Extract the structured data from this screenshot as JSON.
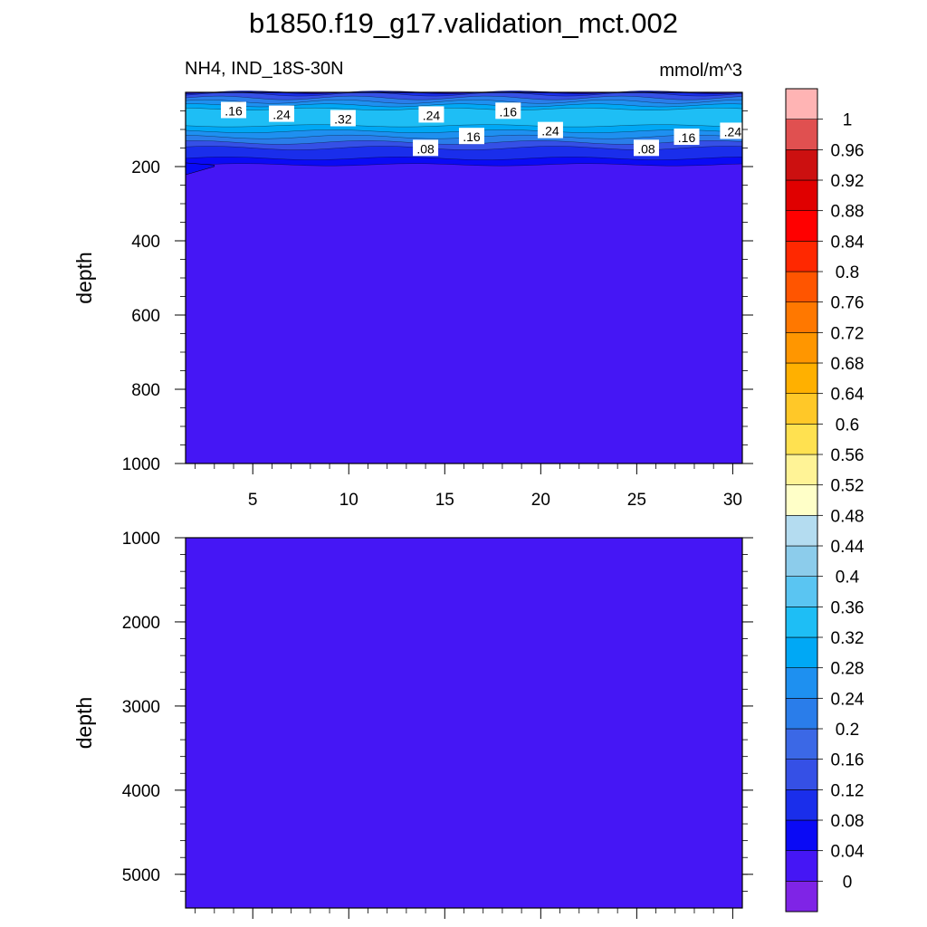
{
  "chart_data": {
    "type": "heatmap",
    "title": "b1850.f19_g17.validation_mct.002",
    "subtitle_left": "NH4, IND_18S-30N",
    "subtitle_right": "mmol/m^3",
    "xlim": [
      1.5,
      30.5
    ],
    "x_ticks": [
      5,
      10,
      15,
      20,
      25,
      30
    ],
    "x_tick_labels": [
      "5",
      "10",
      "15",
      "20",
      "25",
      "30"
    ],
    "panels": [
      {
        "ylabel": "depth",
        "ylim": [
          0,
          1000
        ],
        "y_ticks": [
          200,
          400,
          600,
          800,
          1000
        ],
        "y_tick_labels": [
          "200",
          "400",
          "600",
          "800",
          "1000"
        ],
        "contour_labels": [
          {
            "text": ".16",
            "x": 4.0,
            "y": 50
          },
          {
            "text": ".24",
            "x": 6.5,
            "y": 60
          },
          {
            "text": ".32",
            "x": 9.7,
            "y": 72
          },
          {
            "text": ".24",
            "x": 14.3,
            "y": 62
          },
          {
            "text": ".16",
            "x": 18.3,
            "y": 52
          },
          {
            "text": ".24",
            "x": 20.5,
            "y": 104
          },
          {
            "text": ".16",
            "x": 16.4,
            "y": 120
          },
          {
            "text": ".08",
            "x": 14.0,
            "y": 152
          },
          {
            "text": ".08",
            "x": 25.5,
            "y": 152
          },
          {
            "text": ".16",
            "x": 27.6,
            "y": 122
          },
          {
            "text": ".24",
            "x": 30.0,
            "y": 106
          }
        ]
      },
      {
        "ylabel": "depth",
        "ylim": [
          1000,
          5400
        ],
        "y_ticks": [
          1000,
          2000,
          3000,
          4000,
          5000
        ],
        "y_tick_labels": [
          "1000",
          "2000",
          "3000",
          "4000",
          "5000"
        ]
      }
    ],
    "colorbar": {
      "levels": [
        "0",
        "0.04",
        "0.08",
        "0.12",
        "0.16",
        "0.2",
        "0.24",
        "0.28",
        "0.32",
        "0.36",
        "0.4",
        "0.44",
        "0.48",
        "0.52",
        "0.56",
        "0.6",
        "0.64",
        "0.68",
        "0.72",
        "0.76",
        "0.8",
        "0.84",
        "0.88",
        "0.92",
        "0.96",
        "1"
      ],
      "colors": [
        "#7F24E6",
        "#4516F5",
        "#0A0AF5",
        "#1A2EEB",
        "#3550E6",
        "#3B68E6",
        "#2A7DEA",
        "#1E90F0",
        "#00A8F5",
        "#1EBEF5",
        "#5AC5F2",
        "#8CCCEB",
        "#B4DCF0",
        "#FFFFC8",
        "#FFF396",
        "#FFE150",
        "#FFC828",
        "#FFB000",
        "#FF9600",
        "#FF7800",
        "#FF5500",
        "#FF2800",
        "#FF0000",
        "#E00000",
        "#CC1010",
        "#E05050",
        "#FFB4B4"
      ]
    },
    "field": {
      "deep_color": "#4516F5",
      "surface_colors": [
        "#0A0AF5",
        "#1A2EEB",
        "#3550E6",
        "#2A7DEA",
        "#1E90F0",
        "#00A8F5",
        "#1EBEF5"
      ]
    },
    "grid": false
  }
}
